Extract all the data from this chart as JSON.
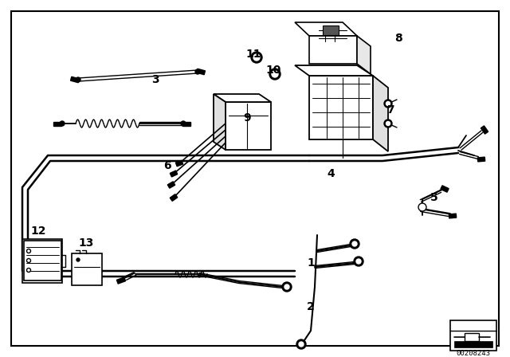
{
  "bg_color": "#ffffff",
  "lc": "#000000",
  "fig_width": 6.4,
  "fig_height": 4.48,
  "dpi": 100,
  "diagram_number": "00208243",
  "labels": [
    [
      "1",
      390,
      330
    ],
    [
      "2",
      390,
      385
    ],
    [
      "3",
      195,
      100
    ],
    [
      "4",
      415,
      218
    ],
    [
      "5",
      545,
      248
    ],
    [
      "6",
      210,
      208
    ],
    [
      "7",
      490,
      138
    ],
    [
      "8",
      500,
      48
    ],
    [
      "9",
      310,
      148
    ],
    [
      "10",
      343,
      88
    ],
    [
      "11",
      318,
      68
    ],
    [
      "12",
      48,
      290
    ],
    [
      "13",
      108,
      305
    ]
  ]
}
